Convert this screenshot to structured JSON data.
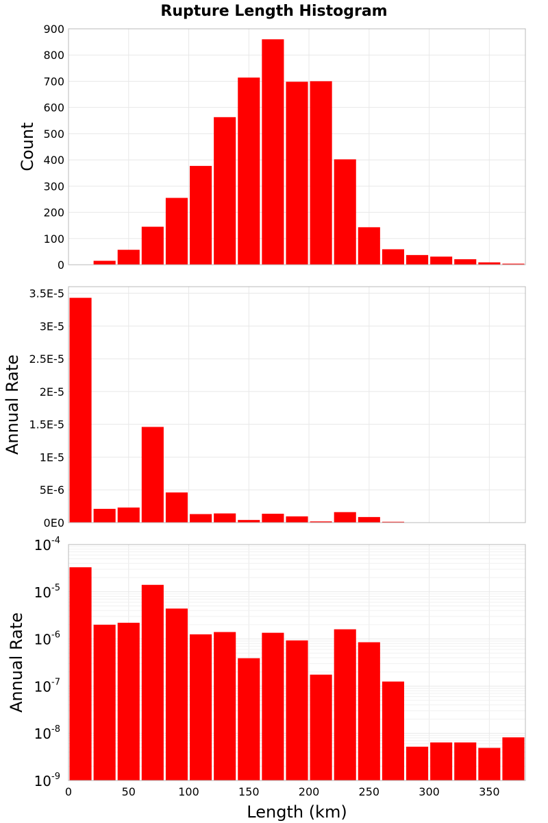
{
  "title": "Rupture Length Histogram",
  "chart_data": [
    {
      "type": "bar",
      "ylabel": "Count",
      "xlim": [
        0,
        380
      ],
      "ylim": [
        0,
        900
      ],
      "yticks": [
        "0",
        "100",
        "200",
        "300",
        "400",
        "500",
        "600",
        "700",
        "800",
        "900"
      ],
      "bin_width": 20,
      "x": [
        10,
        30,
        50,
        70,
        90,
        110,
        130,
        150,
        170,
        190,
        210,
        230,
        250,
        270,
        290,
        310,
        330,
        350,
        370
      ],
      "values": [
        1,
        15,
        57,
        145,
        255,
        377,
        563,
        714,
        860,
        698,
        700,
        402,
        143,
        59,
        37,
        31,
        21,
        9,
        4
      ],
      "color": "#ff0000",
      "grid": true
    },
    {
      "type": "bar",
      "ylabel": "Annual Rate",
      "xlim": [
        0,
        380
      ],
      "ylim": [
        0,
        3.6e-05
      ],
      "yticks": [
        "0E0",
        "5E-6",
        "1E-5",
        "1.5E-5",
        "2E-5",
        "2.5E-5",
        "3E-5",
        "3.5E-5"
      ],
      "bin_width": 20,
      "x": [
        10,
        30,
        50,
        70,
        90,
        110,
        130,
        150,
        170,
        190,
        210,
        230,
        250,
        270,
        290,
        310,
        330,
        350,
        370
      ],
      "values": [
        3.43e-05,
        2.1e-06,
        2.3e-06,
        1.46e-05,
        4.6e-06,
        1.3e-06,
        1.4e-06,
        4e-07,
        1.35e-06,
        9.5e-07,
        1.8e-07,
        1.6e-06,
        8.5e-07,
        1.3e-07,
        5e-09,
        6.5e-09,
        6.5e-09,
        5e-09,
        8e-09
      ],
      "color": "#ff0000",
      "grid": true
    },
    {
      "type": "bar",
      "ylabel": "Annual Rate",
      "xlabel": "Length (km)",
      "log_y": true,
      "xlim": [
        0,
        380
      ],
      "ylim": [
        1e-09,
        0.0001
      ],
      "yticks": [
        {
          "base": "10",
          "exp": "-9"
        },
        {
          "base": "10",
          "exp": "-8"
        },
        {
          "base": "10",
          "exp": "-7"
        },
        {
          "base": "10",
          "exp": "-6"
        },
        {
          "base": "10",
          "exp": "-5"
        },
        {
          "base": "10",
          "exp": "-4"
        }
      ],
      "xticks": [
        "0",
        "50",
        "100",
        "150",
        "200",
        "250",
        "300",
        "350"
      ],
      "bin_width": 20,
      "x": [
        10,
        30,
        50,
        70,
        90,
        110,
        130,
        150,
        170,
        190,
        210,
        230,
        250,
        270,
        290,
        310,
        330,
        350,
        370
      ],
      "values": [
        3.3e-05,
        2e-06,
        2.2e-06,
        1.4e-05,
        4.4e-06,
        1.25e-06,
        1.4e-06,
        3.9e-07,
        1.35e-06,
        9.3e-07,
        1.75e-07,
        1.6e-06,
        8.5e-07,
        1.25e-07,
        5.2e-09,
        6.4e-09,
        6.4e-09,
        4.9e-09,
        8.2e-09
      ],
      "color": "#ff0000",
      "grid": true
    }
  ]
}
